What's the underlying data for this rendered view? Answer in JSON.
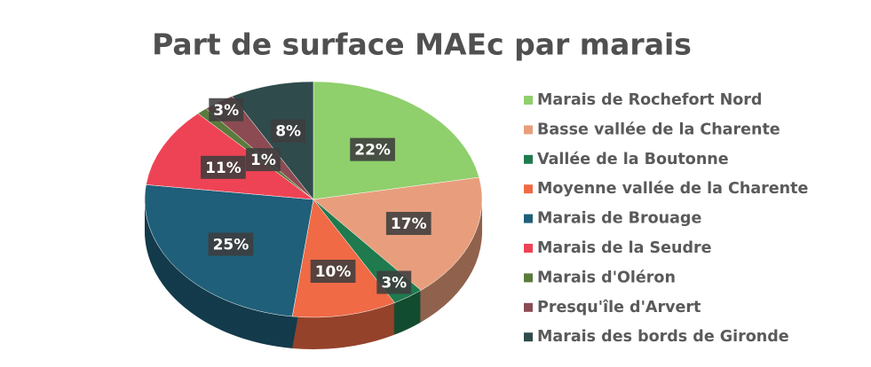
{
  "chart_data": {
    "type": "pie",
    "title": "Part de surface MAEc par marais",
    "categories": [
      "Marais de Rochefort Nord",
      "Basse vallée de la Charente",
      "Vallée de la Boutonne",
      "Moyenne vallée de la Charente",
      "Marais de Brouage",
      "Marais de la Seudre",
      "Marais d'Oléron",
      "Presqu'île d'Arvert",
      "Marais des bords de Gironde"
    ],
    "values": [
      22,
      17,
      3,
      10,
      25,
      11,
      1,
      3,
      8
    ],
    "value_labels": [
      "22%",
      "17%",
      "3%",
      "10%",
      "25%",
      "11%",
      "1%",
      "3%",
      "8%"
    ],
    "colors": [
      "#8fcf6c",
      "#e89e7c",
      "#1f7a4e",
      "#f06a46",
      "#1f5f79",
      "#ee4355",
      "#5b7b3c",
      "#8c4b52",
      "#2f4b4b"
    ],
    "legend": "right"
  }
}
